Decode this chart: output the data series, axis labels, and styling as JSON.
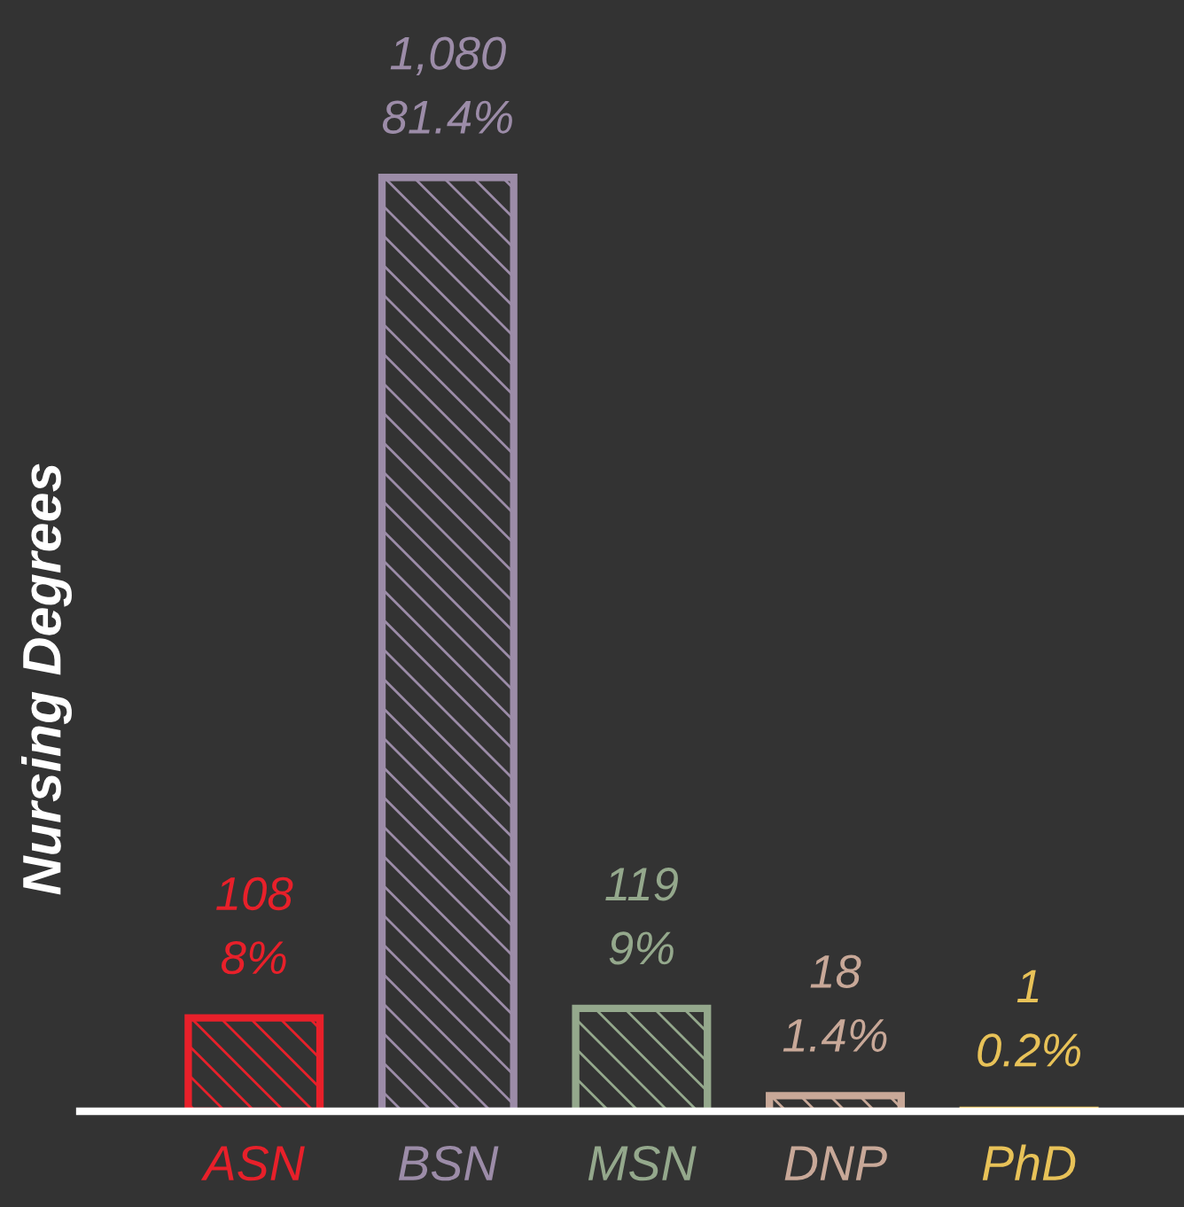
{
  "chart_data": {
    "type": "bar",
    "ylabel": "Nursing Degrees",
    "categories": [
      "ASN",
      "BSN",
      "MSN",
      "DNP",
      "PhD"
    ],
    "values": [
      108,
      1080,
      119,
      18,
      1
    ],
    "colors": [
      "#e8202a",
      "#9c8ca8",
      "#94a88c",
      "#c8a898",
      "#e8c258"
    ],
    "value_labels": [
      "108\n8%",
      "1,080\n81.4%",
      "119\n9%",
      "18\n1.4%",
      "1\n0.2%"
    ],
    "grid": false,
    "legend": false
  }
}
